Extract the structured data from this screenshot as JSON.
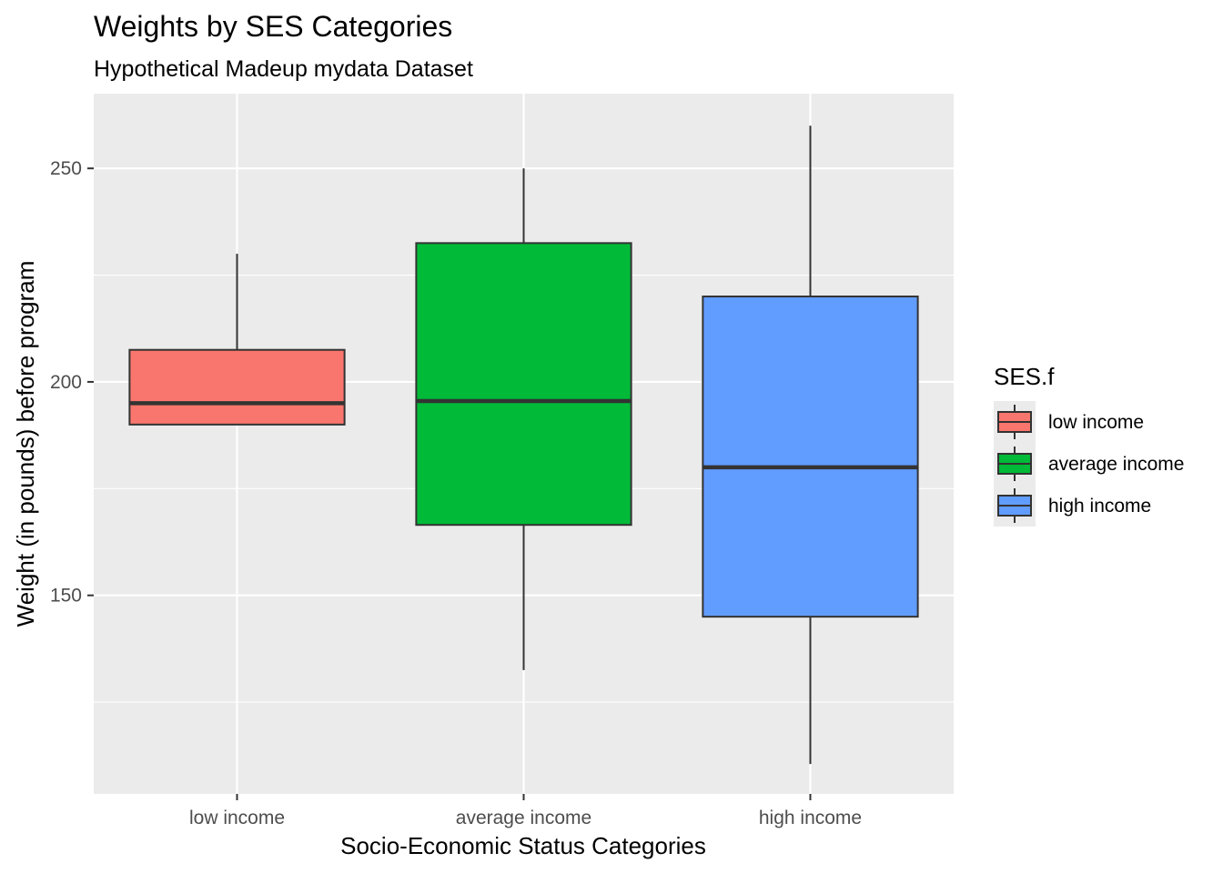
{
  "chart_data": {
    "type": "boxplot",
    "title": "Weights by SES Categories",
    "subtitle": "Hypothetical Madeup mydata Dataset",
    "xlabel": "Socio-Economic Status Categories",
    "ylabel": "Weight (in pounds) before program",
    "categories": [
      "low income",
      "average income",
      "high income"
    ],
    "ylim": [
      103.5,
      267.5
    ],
    "yticks": [
      150,
      200,
      250
    ],
    "grid": true,
    "legend": {
      "title": "SES.f",
      "position": "right",
      "items": [
        "low income",
        "average income",
        "high income"
      ]
    },
    "series": [
      {
        "name": "low income",
        "color": "#F8766D",
        "whisker_low": 190,
        "q1": 190,
        "median": 195,
        "q3": 207.5,
        "whisker_high": 230
      },
      {
        "name": "average income",
        "color": "#00BA38",
        "whisker_low": 132.5,
        "q1": 166.5,
        "median": 195.5,
        "q3": 232.5,
        "whisker_high": 250
      },
      {
        "name": "high income",
        "color": "#619CFF",
        "whisker_low": 110.5,
        "q1": 145,
        "median": 180,
        "q3": 220,
        "whisker_high": 260
      }
    ],
    "colors": {
      "panel_bg": "#EBEBEB",
      "grid": "#FFFFFF",
      "box_stroke": "#333333",
      "tick_text": "#4D4D4D"
    }
  }
}
